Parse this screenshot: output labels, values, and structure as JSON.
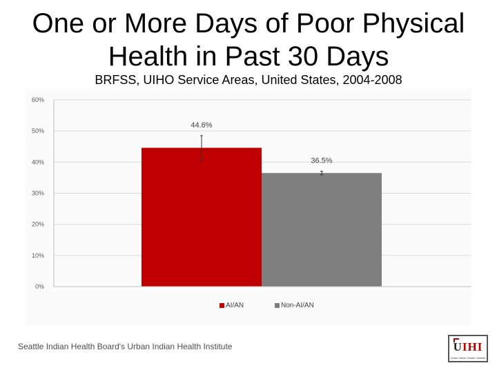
{
  "title_line1": "One or More Days of Poor Physical",
  "title_line2": "Health in Past 30 Days",
  "subtitle": "BRFSS, UIHO Service Areas, United States, 2004-2008",
  "footer": "Seattle Indian Health Board's Urban Indian Health Institute",
  "logo": {
    "text_main": "U",
    "text_accent": "IHI",
    "tagline": "Urban Indian Health Institute"
  },
  "colors": {
    "aian": "#c00000",
    "non_aian": "#7f7f7f",
    "grid": "#d9d9d9",
    "axis_text": "#595959"
  },
  "chart_data": {
    "type": "bar",
    "categories": [
      "AI/AN",
      "Non-AI/AN"
    ],
    "values": [
      44.6,
      36.5
    ],
    "labels": [
      "44.6%",
      "36.5%"
    ],
    "error_low": [
      40.5,
      35.9
    ],
    "error_high": [
      48.5,
      37.1
    ],
    "ylim": [
      0,
      60
    ],
    "yticks": [
      0,
      10,
      20,
      30,
      40,
      50,
      60
    ],
    "ytick_labels": [
      "0%",
      "10%",
      "20%",
      "30%",
      "40%",
      "50%",
      "60%"
    ],
    "legend": [
      "AI/AN",
      "Non-AI/AN"
    ],
    "legend_position": "bottom",
    "grid": true
  }
}
